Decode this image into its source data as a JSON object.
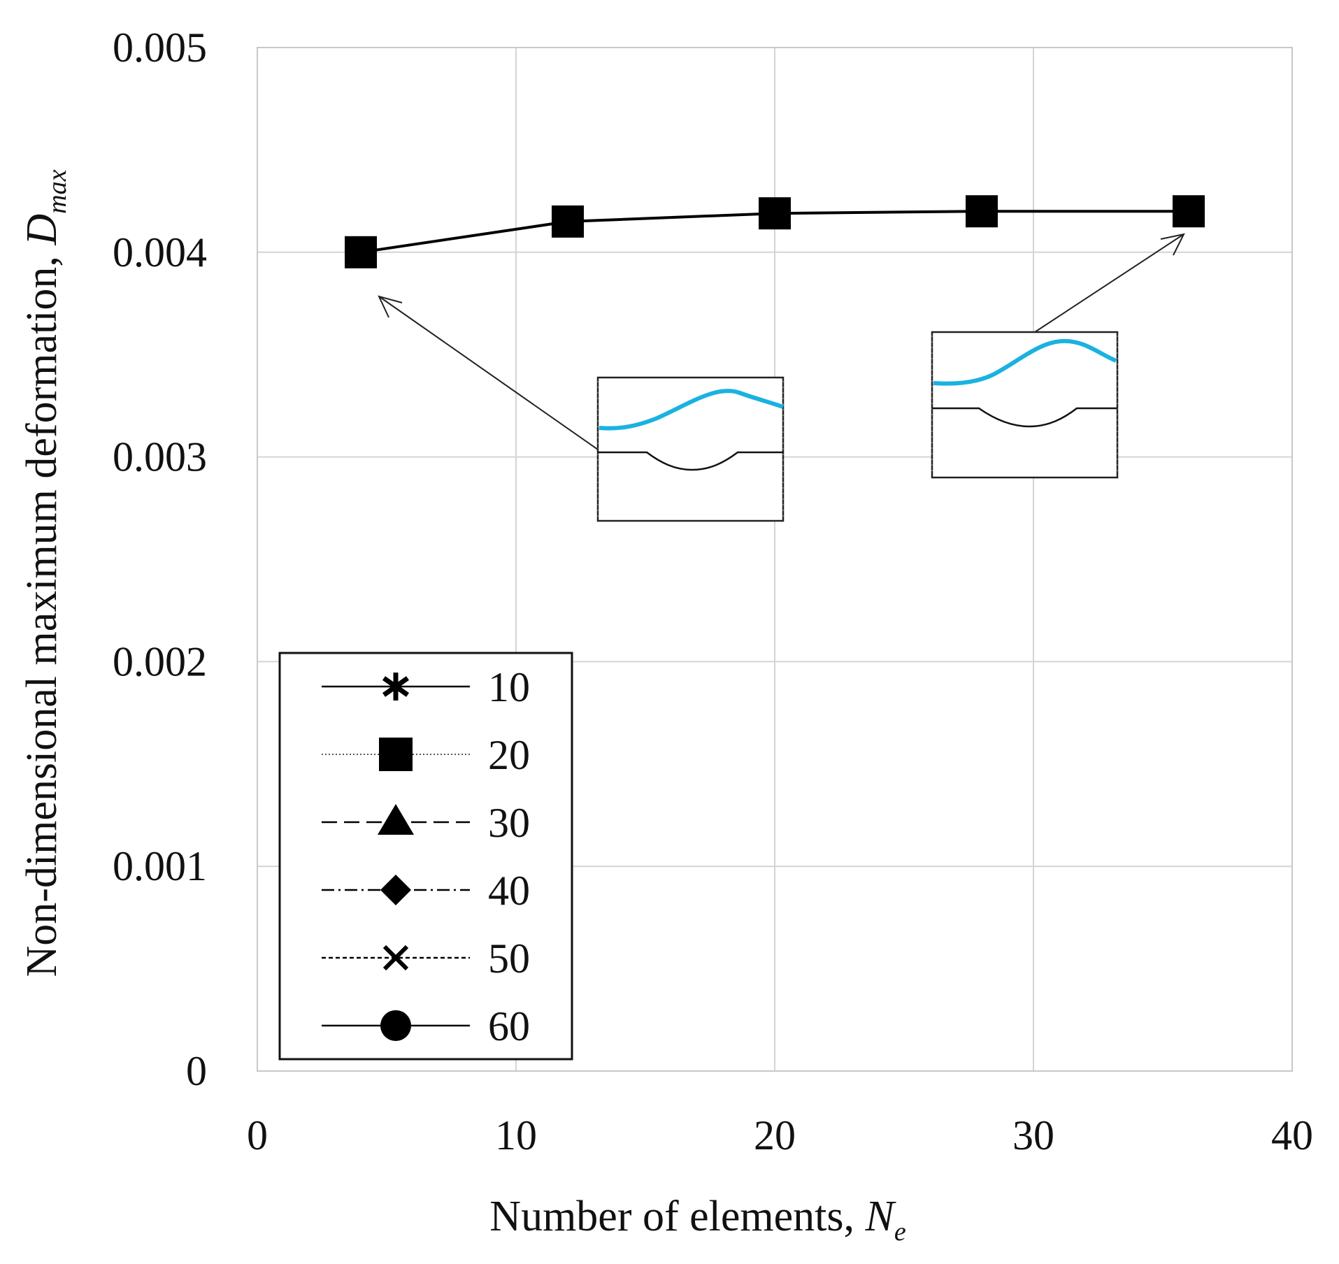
{
  "chart_data": {
    "type": "line",
    "title": "",
    "xlabel": "Number of elements,",
    "xlabel_symbol": "N",
    "xlabel_subscript": "e",
    "ylabel": "Non-dimensional maximum deformation,",
    "ylabel_symbol": "D",
    "ylabel_subscript": "max",
    "xlim": [
      0,
      40
    ],
    "ylim": [
      0,
      0.005
    ],
    "x_ticks": [
      0,
      10,
      20,
      30,
      40
    ],
    "x_tick_labels": [
      "0",
      "10",
      "20",
      "30",
      "40"
    ],
    "y_ticks": [
      0,
      0.001,
      0.002,
      0.003,
      0.004,
      0.005
    ],
    "y_tick_labels": [
      "0",
      "0.001",
      "0.002",
      "0.003",
      "0.004",
      "0.005"
    ],
    "grid": true,
    "legend_position": "bottom-left",
    "series": [
      {
        "name": "10",
        "marker": "asterisk",
        "line": "solid",
        "x": [],
        "y": []
      },
      {
        "name": "20",
        "marker": "square",
        "line": "dotted",
        "x": [
          4,
          12,
          20,
          28,
          36
        ],
        "y": [
          0.004,
          0.00415,
          0.00419,
          0.0042,
          0.0042
        ]
      },
      {
        "name": "30",
        "marker": "triangle",
        "line": "dashed",
        "x": [],
        "y": []
      },
      {
        "name": "40",
        "marker": "diamond",
        "line": "dashdot",
        "x": [],
        "y": []
      },
      {
        "name": "50",
        "marker": "x",
        "line": "short-dashed",
        "x": [],
        "y": []
      },
      {
        "name": "60",
        "marker": "circle",
        "line": "solid",
        "x": [],
        "y": []
      }
    ],
    "connecting_line": {
      "x": [
        4,
        12,
        20,
        28,
        36
      ],
      "y": [
        0.004,
        0.00415,
        0.00419,
        0.0042,
        0.0042
      ]
    },
    "annotations": [
      {
        "type": "inset-arrow",
        "points_to": {
          "x": 4,
          "y": 0.004
        },
        "description": "deformed shape inset at Ne = 4"
      },
      {
        "type": "inset-arrow",
        "points_to": {
          "x": 36,
          "y": 0.0042
        },
        "description": "deformed shape inset at Ne = 36"
      }
    ]
  },
  "colors": {
    "axis": "#c8c8c8",
    "grid": "#d4d4d4",
    "data": "#000000",
    "inset_curve": "#1ab2e0",
    "text": "#111111"
  }
}
